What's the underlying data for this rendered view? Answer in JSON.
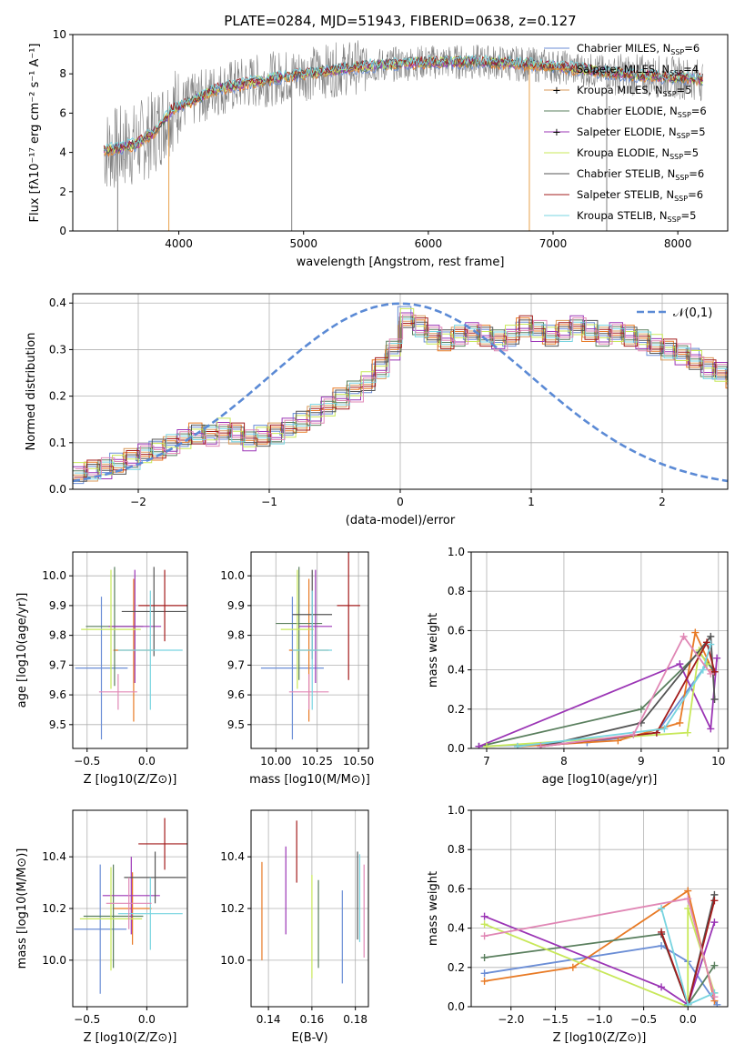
{
  "figure_title": "PLATE=0284, MJD=51943, FIBERID=0638, z=0.127",
  "colors": [
    "#6b8ed6",
    "#e87a25",
    "#d99a5a",
    "#5a7f5e",
    "#9b35b5",
    "#c8e85a",
    "#555555",
    "#a31c1c",
    "#77d4e0",
    "#e087b5"
  ],
  "chart_data": [
    {
      "id": "spectrum",
      "type": "line",
      "xlabel": "wavelength [Angstrom, rest frame]",
      "ylabel": "Flux [fλ10⁻¹⁷ erg cm⁻² s⁻¹ A⁻¹]",
      "xlim": [
        3150,
        8400
      ],
      "ylim": [
        0,
        10
      ],
      "xticks": [
        4000,
        5000,
        6000,
        7000,
        8000
      ],
      "yticks": [
        0,
        2,
        4,
        6,
        8,
        10
      ],
      "grid": false,
      "legend_position": "right",
      "data_range": [
        3400,
        8200
      ],
      "continuum": {
        "x": [
          3400,
          3500,
          3650,
          3800,
          3950,
          4100,
          4300,
          4600,
          5000,
          5500,
          6000,
          6500,
          7000,
          7500,
          8000,
          8200
        ],
        "y": [
          4.1,
          4.2,
          4.4,
          5.0,
          6.2,
          6.6,
          7.2,
          7.6,
          8.0,
          8.4,
          8.6,
          8.6,
          8.4,
          8.0,
          7.8,
          7.7
        ]
      },
      "spikes_down": [
        {
          "x": 3510,
          "y": 0
        },
        {
          "x": 3920,
          "y": 0
        },
        {
          "x": 4905,
          "y": 0
        },
        {
          "x": 6810,
          "y": 0
        },
        {
          "x": 7430,
          "y": 0
        }
      ],
      "series": [
        {
          "name": "Chabrier MILES, N",
          "sub": "SSP",
          "eq": "=6",
          "color": "#6b8ed6"
        },
        {
          "name": "Salpeter MILES, N",
          "sub": "SSP",
          "eq": "=4",
          "color": "#e87a25"
        },
        {
          "name": "Kroupa MILES, N",
          "sub": "SSP",
          "eq": "=5",
          "color": "#d99a5a",
          "marker": "+"
        },
        {
          "name": "Chabrier ELODIE, N",
          "sub": "SSP",
          "eq": "=6",
          "color": "#5a7f5e"
        },
        {
          "name": "Salpeter ELODIE, N",
          "sub": "SSP",
          "eq": "=5",
          "color": "#9b35b5",
          "marker": "+"
        },
        {
          "name": "Kroupa ELODIE, N",
          "sub": "SSP",
          "eq": "=5",
          "color": "#c8e85a"
        },
        {
          "name": "Chabrier STELIB, N",
          "sub": "SSP",
          "eq": "=6",
          "color": "#555555"
        },
        {
          "name": "Salpeter STELIB, N",
          "sub": "SSP",
          "eq": "=6",
          "color": "#a31c1c"
        },
        {
          "name": "Kroupa STELIB, N",
          "sub": "SSP",
          "eq": "=5",
          "color": "#77d4e0"
        }
      ]
    },
    {
      "id": "residuals",
      "type": "histogram",
      "xlabel": "(data-model)/error",
      "ylabel": "Normed distribution",
      "xlim": [
        -2.5,
        2.5
      ],
      "ylim": [
        0,
        0.42
      ],
      "xticks": [
        -2,
        -1,
        0,
        1,
        2
      ],
      "yticks": [
        0.0,
        0.1,
        0.2,
        0.3,
        0.4
      ],
      "grid": true,
      "bin_width": 0.1,
      "bin_start": -2.5,
      "reference_label": "𝒩(0,1)",
      "reference_color": "#5b8ad5",
      "legend_position": "top-right",
      "base_values": [
        0.035,
        0.04,
        0.045,
        0.055,
        0.065,
        0.075,
        0.085,
        0.095,
        0.11,
        0.12,
        0.115,
        0.13,
        0.12,
        0.105,
        0.115,
        0.12,
        0.13,
        0.145,
        0.16,
        0.18,
        0.195,
        0.21,
        0.23,
        0.26,
        0.3,
        0.37,
        0.35,
        0.33,
        0.32,
        0.33,
        0.34,
        0.33,
        0.32,
        0.33,
        0.35,
        0.34,
        0.33,
        0.34,
        0.35,
        0.34,
        0.33,
        0.34,
        0.33,
        0.32,
        0.31,
        0.3,
        0.29,
        0.28,
        0.26,
        0.25,
        0.24,
        0.23,
        0.22,
        0.21,
        0.2,
        0.185,
        0.17,
        0.155,
        0.14,
        0.125,
        0.115,
        0.11,
        0.1,
        0.095,
        0.085,
        0.075,
        0.07,
        0.065,
        0.06,
        0.055,
        0.05,
        0.045,
        0.04,
        0.035,
        0.03
      ]
    },
    {
      "id": "age-vs-Z",
      "type": "errorbar",
      "xlabel": "Z [log10(Z/Z⊙)]",
      "ylabel": "age  [log10(age/yr)]",
      "xlim": [
        -0.62,
        0.34
      ],
      "ylim": [
        9.42,
        10.08
      ],
      "xticks": [
        -0.5,
        0.0
      ],
      "xtick_labels": [
        "−0.5",
        "0.0"
      ],
      "yticks": [
        9.5,
        9.6,
        9.7,
        9.8,
        9.9,
        10.0
      ],
      "grid": true,
      "points": [
        {
          "x": -0.38,
          "xerr": 0.22,
          "y": 9.69,
          "yerr": 0.24,
          "color": "#6b8ed6"
        },
        {
          "x": -0.11,
          "xerr": 0.17,
          "y": 9.75,
          "yerr": 0.24,
          "color": "#e87a25"
        },
        {
          "x": -0.24,
          "xerr": 0.16,
          "y": 9.61,
          "yerr": 0.06,
          "color": "#e087b5"
        },
        {
          "x": -0.27,
          "xerr": 0.24,
          "y": 9.83,
          "yerr": 0.2,
          "color": "#5a7f5e"
        },
        {
          "x": -0.1,
          "xerr": 0.22,
          "y": 9.83,
          "yerr": 0.19,
          "color": "#9b35b5"
        },
        {
          "x": -0.3,
          "xerr": 0.25,
          "y": 9.82,
          "yerr": 0.2,
          "color": "#c8e85a"
        },
        {
          "x": 0.06,
          "xerr": 0.27,
          "y": 9.88,
          "yerr": 0.15,
          "color": "#555555"
        },
        {
          "x": 0.15,
          "xerr": 0.22,
          "y": 9.9,
          "yerr": 0.12,
          "color": "#a31c1c"
        },
        {
          "x": 0.03,
          "xerr": 0.27,
          "y": 9.75,
          "yerr": 0.2,
          "color": "#77d4e0"
        }
      ]
    },
    {
      "id": "age-vs-mass",
      "type": "errorbar",
      "xlabel": "mass [log10(M/M⊙)]",
      "ylabel": "",
      "xlim": [
        9.85,
        10.56
      ],
      "ylim": [
        9.42,
        10.08
      ],
      "xticks": [
        10.0,
        10.25,
        10.5
      ],
      "xtick_labels": [
        "10.00",
        "10.25",
        "10.50"
      ],
      "yticks": [
        9.5,
        9.6,
        9.7,
        9.8,
        9.9,
        10.0
      ],
      "grid": true,
      "points": [
        {
          "x": 10.1,
          "xerr": 0.19,
          "y": 9.69,
          "yerr": 0.24,
          "color": "#6b8ed6"
        },
        {
          "x": 10.2,
          "xerr": 0.12,
          "y": 9.75,
          "yerr": 0.24,
          "color": "#e87a25"
        },
        {
          "x": 10.2,
          "xerr": 0.12,
          "y": 9.61,
          "yerr": 0.06,
          "color": "#e087b5"
        },
        {
          "x": 10.14,
          "xerr": 0.14,
          "y": 9.84,
          "yerr": 0.19,
          "color": "#5a7f5e"
        },
        {
          "x": 10.24,
          "xerr": 0.1,
          "y": 9.83,
          "yerr": 0.19,
          "color": "#9b35b5"
        },
        {
          "x": 10.13,
          "xerr": 0.1,
          "y": 9.82,
          "yerr": 0.2,
          "color": "#c8e85a"
        },
        {
          "x": 10.22,
          "xerr": 0.12,
          "y": 9.87,
          "yerr": 0.15,
          "color": "#555555"
        },
        {
          "x": 10.44,
          "xerr": 0.07,
          "y": 9.9,
          "yerr": 0.25,
          "color": "#a31c1c"
        },
        {
          "x": 10.22,
          "xerr": 0.12,
          "y": 9.75,
          "yerr": 0.2,
          "color": "#77d4e0"
        }
      ]
    },
    {
      "id": "weight-vs-age",
      "type": "line",
      "xlabel": "age  [log10(age/yr)]",
      "ylabel": "mass weight",
      "xlim": [
        6.8,
        10.12
      ],
      "ylim": [
        0,
        1
      ],
      "xticks": [
        7,
        8,
        9,
        10
      ],
      "yticks": [
        0.0,
        0.2,
        0.4,
        0.6,
        0.8,
        1.0
      ],
      "grid": true,
      "series": [
        {
          "color": "#6b8ed6",
          "x": [
            6.9,
            8.3,
            9.2,
            9.85
          ],
          "y": [
            0.01,
            0.03,
            0.08,
            0.43
          ]
        },
        {
          "color": "#e87a25",
          "x": [
            7.4,
            8.7,
            9.5,
            9.7,
            9.92
          ],
          "y": [
            0.01,
            0.04,
            0.13,
            0.59,
            0.4
          ]
        },
        {
          "color": "#5a7f5e",
          "x": [
            6.9,
            9.0,
            9.75,
            9.95
          ],
          "y": [
            0.01,
            0.2,
            0.49,
            0.39
          ]
        },
        {
          "color": "#9b35b5",
          "x": [
            6.9,
            9.5,
            9.9,
            9.98
          ],
          "y": [
            0.01,
            0.43,
            0.1,
            0.46
          ]
        },
        {
          "color": "#c8e85a",
          "x": [
            7.0,
            9.6,
            9.75,
            9.85
          ],
          "y": [
            0.01,
            0.08,
            0.5,
            0.43
          ]
        },
        {
          "color": "#555555",
          "x": [
            7.7,
            9.0,
            9.9,
            9.95
          ],
          "y": [
            0.01,
            0.13,
            0.57,
            0.25
          ]
        },
        {
          "color": "#a31c1c",
          "x": [
            7.7,
            9.2,
            9.85,
            9.95
          ],
          "y": [
            0.01,
            0.08,
            0.54,
            0.39
          ]
        },
        {
          "color": "#77d4e0",
          "x": [
            7.4,
            9.3,
            9.8,
            9.9
          ],
          "y": [
            0.01,
            0.1,
            0.4,
            0.53
          ]
        },
        {
          "color": "#e087b5",
          "x": [
            7.7,
            8.9,
            9.55,
            9.9
          ],
          "y": [
            0.01,
            0.07,
            0.57,
            0.38
          ]
        }
      ]
    },
    {
      "id": "mass-vs-Z",
      "type": "errorbar",
      "xlabel": "Z [log10(Z/Z⊙)]",
      "ylabel": "mass [log10(M/M⊙)]",
      "xlim": [
        -0.62,
        0.34
      ],
      "ylim": [
        9.82,
        10.58
      ],
      "xticks": [
        -0.5,
        0.0
      ],
      "xtick_labels": [
        "−0.5",
        "0.0"
      ],
      "yticks": [
        10.0,
        10.2,
        10.4
      ],
      "grid": true,
      "points": [
        {
          "x": -0.39,
          "xerr": 0.22,
          "y": 10.12,
          "yerr": 0.25,
          "color": "#6b8ed6"
        },
        {
          "x": -0.12,
          "xerr": 0.16,
          "y": 10.2,
          "yerr": 0.14,
          "color": "#e87a25"
        },
        {
          "x": -0.28,
          "xerr": 0.25,
          "y": 10.17,
          "yerr": 0.2,
          "color": "#5a7f5e"
        },
        {
          "x": -0.13,
          "xerr": 0.24,
          "y": 10.25,
          "yerr": 0.15,
          "color": "#9b35b5"
        },
        {
          "x": -0.3,
          "xerr": 0.26,
          "y": 10.16,
          "yerr": 0.2,
          "color": "#c8e85a"
        },
        {
          "x": 0.07,
          "xerr": 0.26,
          "y": 10.32,
          "yerr": 0.1,
          "color": "#555555"
        },
        {
          "x": 0.15,
          "xerr": 0.22,
          "y": 10.45,
          "yerr": 0.1,
          "color": "#a31c1c"
        },
        {
          "x": 0.03,
          "xerr": 0.27,
          "y": 10.18,
          "yerr": 0.14,
          "color": "#77d4e0"
        },
        {
          "x": -0.15,
          "xerr": 0.19,
          "y": 10.22,
          "yerr": 0.1,
          "color": "#e087b5"
        }
      ]
    },
    {
      "id": "mass-vs-EBV",
      "type": "errorbar",
      "xlabel": "E(B-V)",
      "ylabel": "",
      "xlim": [
        0.132,
        0.186
      ],
      "ylim": [
        9.82,
        10.58
      ],
      "xticks": [
        0.14,
        0.16,
        0.18
      ],
      "xtick_labels": [
        "0.14",
        "0.16",
        "0.18"
      ],
      "yticks": [
        10.0,
        10.2,
        10.4
      ],
      "grid": true,
      "points": [
        {
          "x": 0.137,
          "y": 10.19,
          "yerr": 0.19,
          "color": "#e87a25"
        },
        {
          "x": 0.148,
          "y": 10.27,
          "yerr": 0.17,
          "color": "#9b35b5"
        },
        {
          "x": 0.153,
          "y": 10.42,
          "yerr": 0.12,
          "color": "#a31c1c"
        },
        {
          "x": 0.16,
          "y": 10.13,
          "yerr": 0.2,
          "color": "#c8e85a"
        },
        {
          "x": 0.163,
          "y": 10.14,
          "yerr": 0.17,
          "color": "#5a7f5e"
        },
        {
          "x": 0.174,
          "y": 10.09,
          "yerr": 0.18,
          "color": "#6b8ed6"
        },
        {
          "x": 0.181,
          "y": 10.25,
          "yerr": 0.17,
          "color": "#555555"
        },
        {
          "x": 0.182,
          "y": 10.24,
          "yerr": 0.17,
          "color": "#77d4e0"
        },
        {
          "x": 0.184,
          "y": 10.19,
          "yerr": 0.18,
          "color": "#e087b5"
        }
      ]
    },
    {
      "id": "weight-vs-Z",
      "type": "line",
      "xlabel": "Z [log10(Z/Z⊙)]",
      "ylabel": "mass weight",
      "xlim": [
        -2.45,
        0.45
      ],
      "ylim": [
        0,
        1
      ],
      "xticks": [
        -2.0,
        -1.5,
        -1.0,
        -0.5,
        0.0
      ],
      "xtick_labels": [
        "−2.0",
        "−1.5",
        "−1.0",
        "−0.5",
        "0.0"
      ],
      "yticks": [
        0.0,
        0.2,
        0.4,
        0.6,
        0.8,
        1.0
      ],
      "grid": true,
      "series": [
        {
          "color": "#6b8ed6",
          "x": [
            -2.3,
            -0.3,
            0.0,
            0.33
          ],
          "y": [
            0.17,
            0.31,
            0.23,
            0.01
          ]
        },
        {
          "color": "#e87a25",
          "x": [
            -2.3,
            -1.3,
            0.0,
            0.3
          ],
          "y": [
            0.13,
            0.2,
            0.59,
            0.03
          ]
        },
        {
          "color": "#5a7f5e",
          "x": [
            -2.3,
            -0.3,
            0.0,
            0.3
          ],
          "y": [
            0.25,
            0.37,
            0.01,
            0.21
          ]
        },
        {
          "color": "#9b35b5",
          "x": [
            -2.3,
            -0.3,
            0.0,
            0.3
          ],
          "y": [
            0.46,
            0.1,
            0.01,
            0.43
          ]
        },
        {
          "color": "#c8e85a",
          "x": [
            -2.3,
            0.0,
            0.0,
            0.3
          ],
          "y": [
            0.42,
            0.0,
            0.5,
            0.07
          ]
        },
        {
          "color": "#555555",
          "x": [
            -0.3,
            0.0,
            0.3
          ],
          "y": [
            0.37,
            0.01,
            0.57
          ]
        },
        {
          "color": "#a31c1c",
          "x": [
            -0.3,
            0.0,
            0.3
          ],
          "y": [
            0.38,
            0.01,
            0.54
          ]
        },
        {
          "color": "#77d4e0",
          "x": [
            -0.3,
            0.0,
            0.3
          ],
          "y": [
            0.5,
            0.01,
            0.07
          ]
        },
        {
          "color": "#e087b5",
          "x": [
            -2.3,
            0.0,
            0.3
          ],
          "y": [
            0.36,
            0.55,
            0.05
          ]
        }
      ]
    }
  ]
}
